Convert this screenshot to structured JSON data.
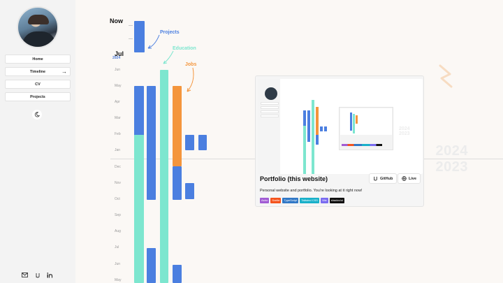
{
  "sidebar": {
    "nav": [
      {
        "label": "Home"
      },
      {
        "label": "Timeline",
        "arrow": "→"
      },
      {
        "label": "CV"
      },
      {
        "label": "Projects"
      }
    ],
    "theme_icon": "moon-icon",
    "footer_icons": [
      "mail-icon",
      "github-icon",
      "linkedin-icon"
    ]
  },
  "timeline": {
    "now_label": "Now",
    "jul_label": "Jul",
    "year_label": "2024",
    "months": [
      "Jun",
      "May",
      "Apr",
      "Mar",
      "Feb",
      "Jan",
      "Dec",
      "Nov",
      "Oct",
      "Sep",
      "Aug",
      "Jul",
      "Jun",
      "May"
    ],
    "year_divider": {
      "upper": "2024",
      "lower": "2023"
    },
    "categories": {
      "projects": {
        "label": "Projects",
        "color": "#4b7fe0"
      },
      "education": {
        "label": "Education",
        "color": "#7de6cf"
      },
      "jobs": {
        "label": "Jobs",
        "color": "#f4953c"
      }
    }
  },
  "card": {
    "title": "Portfolio (this website)",
    "description": "Personal website and portfolio. You're looking at it right now!",
    "github_label": "GitHub",
    "live_label": "Live",
    "tags": [
      {
        "label": "Astro",
        "color": "#a15cd4"
      },
      {
        "label": "Svelte",
        "color": "#f4541e"
      },
      {
        "label": "TypeScript",
        "color": "#3178c6"
      },
      {
        "label": "Tailwind CSS",
        "color": "#19b0c9"
      },
      {
        "label": "Vite",
        "color": "#7a6cf0"
      },
      {
        "label": "shadcn/ui",
        "color": "#111111"
      }
    ]
  }
}
